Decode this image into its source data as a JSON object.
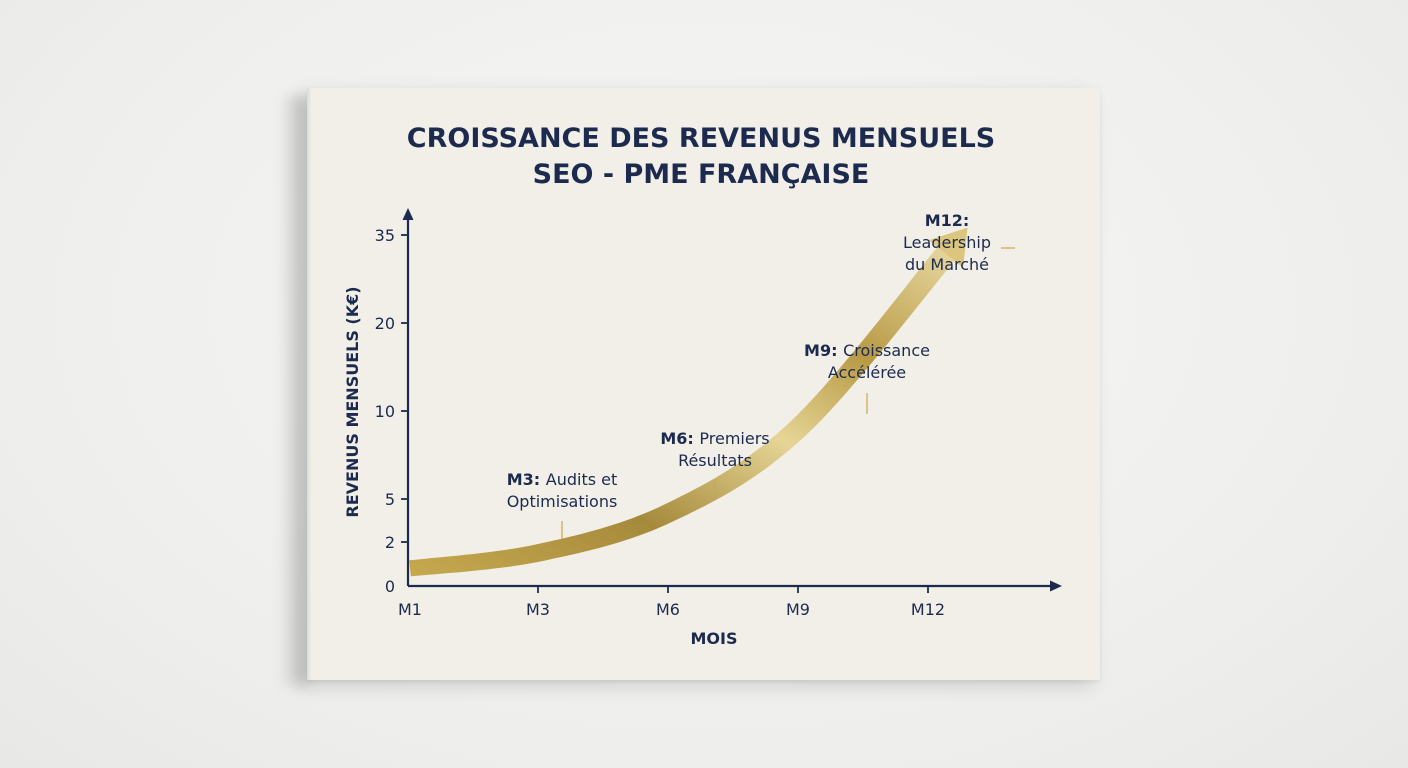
{
  "chart_data": {
    "type": "line",
    "title_lines": [
      "CROISSANCE DES REVENUS MENSUELS",
      "SEO - PME FRANÇAISE"
    ],
    "xlabel": "MOIS",
    "ylabel": "REVENUS MENSUELS (K€)",
    "x_ticks": [
      "M1",
      "M3",
      "M6",
      "M9",
      "M12"
    ],
    "y_ticks": [
      0,
      2,
      5,
      10,
      20,
      35
    ],
    "ylim": [
      0,
      35
    ],
    "grid": false,
    "legend": "none",
    "line_color": "#c9a84a",
    "axis_color": "#1c2a4e",
    "series": [
      {
        "x": [
          "M1",
          "M3",
          "M6",
          "M9",
          "M12"
        ],
        "values": [
          0.8,
          1.5,
          4,
          9,
          35
        ]
      }
    ],
    "annotations": [
      {
        "x": "M3",
        "bold": "M3:",
        "lines": [
          "Audits et",
          "Optimisations"
        ]
      },
      {
        "x": "M6",
        "bold": "M6:",
        "lines": [
          "Premiers",
          "Résultats"
        ]
      },
      {
        "x": "M9",
        "bold": "M9:",
        "lines": [
          "Croissance",
          "Accélérée"
        ]
      },
      {
        "x": "M12",
        "bold": "M12:",
        "lines": [
          "Leadership",
          "du Marché"
        ]
      }
    ]
  }
}
